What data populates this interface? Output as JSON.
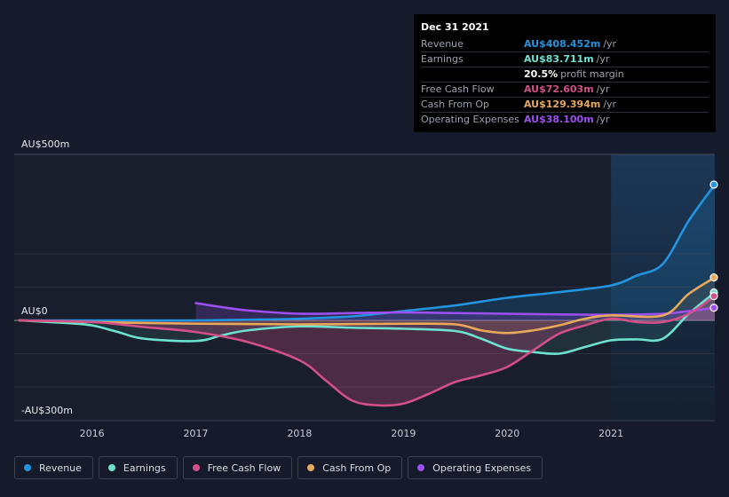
{
  "tooltip": {
    "date": "Dec 31 2021",
    "rows": [
      {
        "label": "Revenue",
        "value": "AU$408.452m",
        "unit": "/yr",
        "color": "#2394df"
      },
      {
        "label": "Earnings",
        "value": "AU$83.711m",
        "unit": "/yr",
        "color": "#6de2d0"
      },
      {
        "label": "",
        "value": "20.5%",
        "unit": "profit margin",
        "color": "#ffffff"
      },
      {
        "label": "Free Cash Flow",
        "value": "AU$72.603m",
        "unit": "/yr",
        "color": "#d34f88"
      },
      {
        "label": "Cash From Op",
        "value": "AU$129.394m",
        "unit": "/yr",
        "color": "#e9a95a"
      },
      {
        "label": "Operating Expenses",
        "value": "AU$38.100m",
        "unit": "/yr",
        "color": "#9d4ff0"
      }
    ]
  },
  "legend": [
    {
      "label": "Revenue",
      "color": "#2394df"
    },
    {
      "label": "Earnings",
      "color": "#6de2d0"
    },
    {
      "label": "Free Cash Flow",
      "color": "#d34f88"
    },
    {
      "label": "Cash From Op",
      "color": "#e9a95a"
    },
    {
      "label": "Operating Expenses",
      "color": "#9d4ff0"
    }
  ],
  "chart_data": {
    "type": "line",
    "title": "",
    "y_axis_labels": [
      "AU$500m",
      "AU$0",
      "-AU$300m"
    ],
    "ylim": [
      -300,
      500
    ],
    "xlim": [
      2015.25,
      2022.0
    ],
    "x_ticks": [
      "2016",
      "2017",
      "2018",
      "2019",
      "2020",
      "2021"
    ],
    "x_tick_values": [
      2016,
      2017,
      2018,
      2019,
      2020,
      2021
    ],
    "highlight_start": 2021.0,
    "series": [
      {
        "name": "Revenue",
        "color": "#2394df",
        "x": [
          2015.3,
          2016,
          2016.5,
          2017,
          2017.5,
          2018,
          2018.5,
          2019,
          2019.5,
          2020,
          2020.5,
          2021,
          2021.25,
          2021.5,
          2021.75,
          2022.0
        ],
        "y": [
          0,
          0,
          0,
          0,
          2,
          5,
          12,
          28,
          45,
          68,
          85,
          105,
          135,
          170,
          300,
          408
        ]
      },
      {
        "name": "Earnings",
        "color": "#6de2d0",
        "x": [
          2015.3,
          2015.75,
          2016,
          2016.25,
          2016.5,
          2017,
          2017.25,
          2017.5,
          2018,
          2018.5,
          2019,
          2019.5,
          2019.75,
          2020,
          2020.25,
          2020.5,
          2020.75,
          2021,
          2021.25,
          2021.5,
          2021.75,
          2022.0
        ],
        "y": [
          0,
          -8,
          -15,
          -35,
          -55,
          -62,
          -45,
          -30,
          -18,
          -22,
          -25,
          -32,
          -55,
          -85,
          -95,
          -100,
          -80,
          -60,
          -57,
          -55,
          20,
          84
        ]
      },
      {
        "name": "Free Cash Flow",
        "color": "#d34f88",
        "x": [
          2015.3,
          2016,
          2016.5,
          2017,
          2017.5,
          2018,
          2018.25,
          2018.5,
          2018.75,
          2019,
          2019.25,
          2019.5,
          2019.75,
          2020,
          2020.25,
          2020.5,
          2020.75,
          2021,
          2021.25,
          2021.5,
          2021.75,
          2022.0
        ],
        "y": [
          0,
          -5,
          -20,
          -35,
          -65,
          -120,
          -180,
          -240,
          -255,
          -250,
          -220,
          -185,
          -165,
          -140,
          -90,
          -40,
          -15,
          5,
          -5,
          -5,
          20,
          73
        ]
      },
      {
        "name": "Cash From Op",
        "color": "#e9a95a",
        "x": [
          2015.3,
          2016,
          2017,
          2018,
          2019,
          2019.5,
          2019.75,
          2020,
          2020.25,
          2020.5,
          2020.75,
          2021,
          2021.5,
          2021.75,
          2022.0
        ],
        "y": [
          0,
          -5,
          -10,
          -12,
          -10,
          -12,
          -30,
          -38,
          -30,
          -15,
          5,
          15,
          15,
          80,
          129
        ]
      },
      {
        "name": "Operating Expenses",
        "color": "#9d4ff0",
        "x": [
          2017.0,
          2017.25,
          2017.5,
          2018,
          2018.5,
          2019,
          2019.5,
          2020,
          2020.5,
          2021,
          2021.5,
          2021.75,
          2022.0
        ],
        "y": [
          52,
          40,
          30,
          20,
          22,
          24,
          22,
          20,
          18,
          17,
          20,
          28,
          38
        ]
      }
    ]
  }
}
